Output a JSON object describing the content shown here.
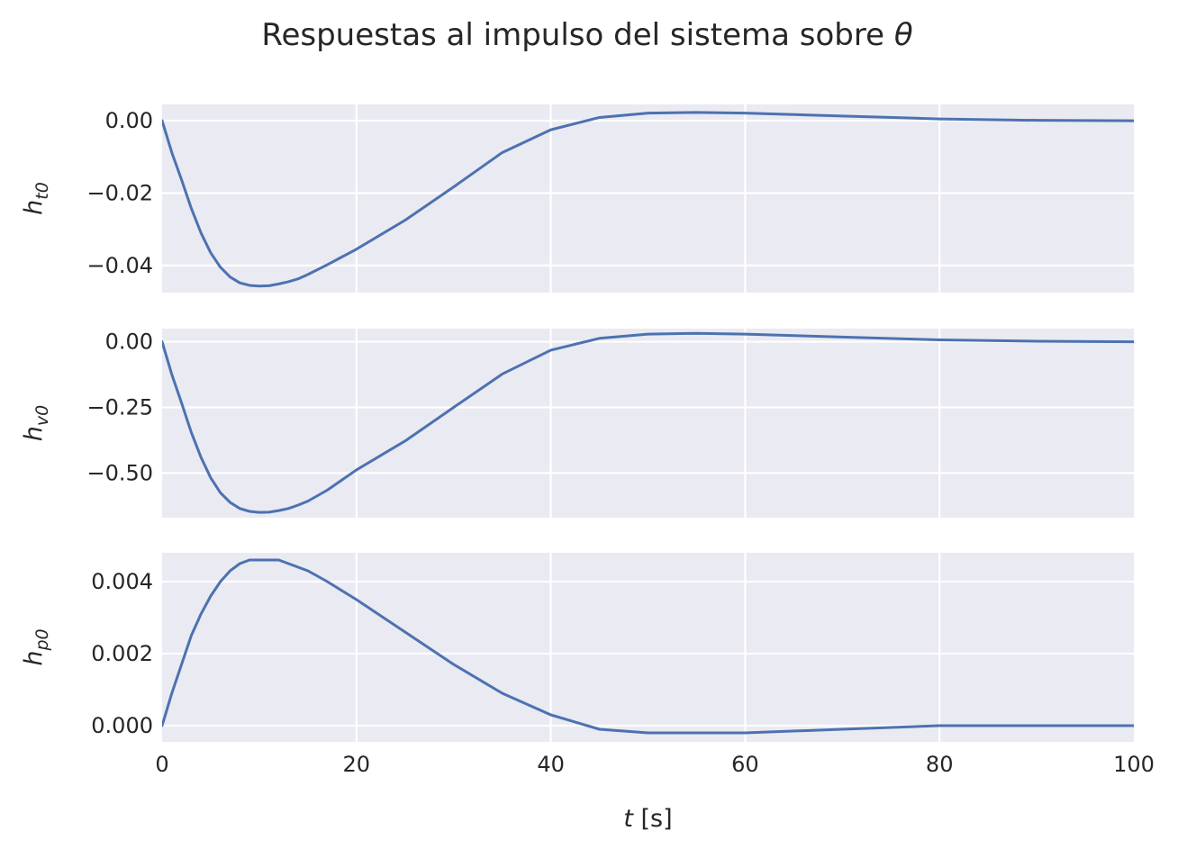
{
  "figure": {
    "title": "Respuestas al impulso del sistema sobre",
    "title_symbol": "θ",
    "colors": {
      "panel_background": "#EAEAF2",
      "grid": "#FFFFFF",
      "series": "#4C72B0",
      "text": "#262626"
    }
  },
  "chart_data": [
    {
      "type": "line",
      "ylabel": {
        "base": "h",
        "subscript": "t0"
      },
      "xlim": [
        0,
        100
      ],
      "ylim": [
        -0.0475,
        0.0045
      ],
      "xticks": [
        0,
        20,
        40,
        60,
        80,
        100
      ],
      "yticks": [
        {
          "value": 0.0,
          "label": "0.00"
        },
        {
          "value": -0.02,
          "label": "−0.02"
        },
        {
          "value": -0.04,
          "label": "−0.04"
        }
      ],
      "grid": true,
      "x": [
        0,
        1,
        2,
        3,
        4,
        5,
        6,
        7,
        8,
        9,
        10,
        11,
        12,
        13,
        14,
        15,
        17,
        20,
        25,
        30,
        35,
        40,
        45,
        50,
        55,
        60,
        70,
        80,
        90,
        100
      ],
      "y": [
        0.0,
        -0.0088,
        -0.0163,
        -0.0242,
        -0.031,
        -0.0365,
        -0.0405,
        -0.0432,
        -0.0448,
        -0.0455,
        -0.0457,
        -0.0456,
        -0.0451,
        -0.0445,
        -0.0437,
        -0.0425,
        -0.0398,
        -0.0355,
        -0.0275,
        -0.0183,
        -0.0088,
        -0.0025,
        0.0009,
        0.0021,
        0.0023,
        0.0021,
        0.0013,
        0.0005,
        0.0001,
        0.0
      ]
    },
    {
      "type": "line",
      "ylabel": {
        "base": "h",
        "subscript": "v0"
      },
      "xlim": [
        0,
        100
      ],
      "ylim": [
        -0.67,
        0.05
      ],
      "xticks": [
        0,
        20,
        40,
        60,
        80,
        100
      ],
      "yticks": [
        {
          "value": 0.0,
          "label": "0.00"
        },
        {
          "value": -0.25,
          "label": "−0.25"
        },
        {
          "value": -0.5,
          "label": "−0.50"
        }
      ],
      "grid": true,
      "x": [
        0,
        1,
        2,
        3,
        4,
        5,
        6,
        7,
        8,
        9,
        10,
        11,
        12,
        13,
        14,
        15,
        17,
        20,
        25,
        30,
        35,
        40,
        45,
        50,
        55,
        60,
        70,
        80,
        90,
        100
      ],
      "y": [
        0.0,
        -0.125,
        -0.233,
        -0.345,
        -0.44,
        -0.518,
        -0.575,
        -0.612,
        -0.635,
        -0.646,
        -0.65,
        -0.649,
        -0.643,
        -0.635,
        -0.622,
        -0.607,
        -0.565,
        -0.488,
        -0.378,
        -0.25,
        -0.123,
        -0.032,
        0.013,
        0.029,
        0.032,
        0.029,
        0.018,
        0.007,
        0.002,
        0.0
      ]
    },
    {
      "type": "line",
      "ylabel": {
        "base": "h",
        "subscript": "p0"
      },
      "xlim": [
        0,
        100
      ],
      "ylim": [
        -0.00045,
        0.0048
      ],
      "xticks": [
        0,
        20,
        40,
        60,
        80,
        100
      ],
      "xticklabels": [
        "0",
        "20",
        "40",
        "60",
        "80",
        "100"
      ],
      "xlabel": {
        "italic": "t",
        "rest": " [s]"
      },
      "yticks": [
        {
          "value": 0.004,
          "label": "0.004"
        },
        {
          "value": 0.002,
          "label": "0.002"
        },
        {
          "value": 0.0,
          "label": "0.000"
        }
      ],
      "grid": true,
      "x": [
        0,
        1,
        2,
        3,
        4,
        5,
        6,
        7,
        8,
        9,
        10,
        11,
        12,
        13,
        14,
        15,
        17,
        20,
        25,
        30,
        35,
        40,
        45,
        50,
        55,
        60,
        70,
        80,
        90,
        100
      ],
      "y": [
        0.0,
        0.0009,
        0.0017,
        0.0025,
        0.0031,
        0.0036,
        0.004,
        0.0043,
        0.0045,
        0.0046,
        0.0046,
        0.0046,
        0.0046,
        0.0045,
        0.0044,
        0.0043,
        0.004,
        0.0035,
        0.0026,
        0.0017,
        0.0009,
        0.0003,
        -0.0001,
        -0.0002,
        -0.0002,
        -0.0002,
        -0.0001,
        0.0,
        0.0,
        0.0
      ]
    }
  ]
}
